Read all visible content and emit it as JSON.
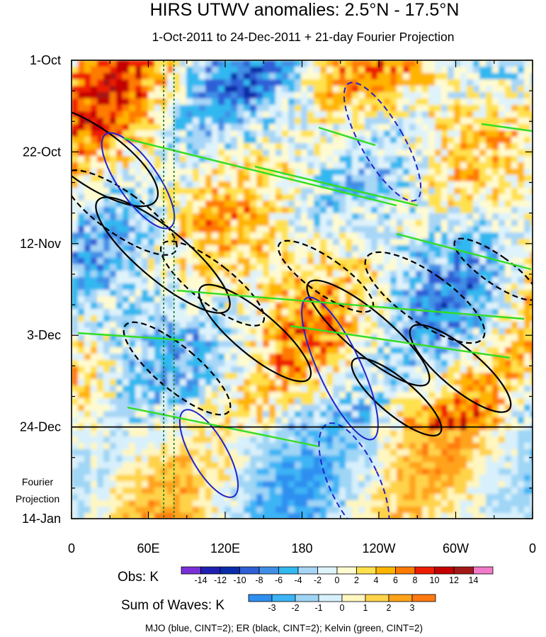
{
  "chart_data": {
    "type": "heatmap",
    "title": "HIRS UTWV anomalies: 2.5°N - 17.5°N",
    "subtitle": "1-Oct-2011 to 24-Dec-2011 + 21-day Fourier Projection",
    "y_axis": {
      "ticks": [
        "1-Oct",
        "22-Oct",
        "12-Nov",
        "3-Dec",
        "24-Dec",
        "14-Jan"
      ],
      "day_values": [
        0,
        21,
        42,
        63,
        84,
        105
      ],
      "range_days": [
        0,
        105
      ]
    },
    "x_axis": {
      "ticks": [
        "0",
        "60E",
        "120E",
        "180",
        "120W",
        "60W",
        "0"
      ],
      "lon_values": [
        0,
        60,
        120,
        180,
        240,
        300,
        360
      ],
      "range_lon": [
        0,
        360
      ]
    },
    "projection_label_line1": "Fourier",
    "projection_label_line2": "Projection",
    "projection_start_day": 84,
    "reference_longitudes": [
      72,
      80
    ],
    "obs_colorbar": {
      "label": "Obs: K",
      "levels": [
        "-14",
        "-12",
        "-10",
        "-8",
        "-6",
        "-4",
        "-2",
        "0",
        "2",
        "4",
        "6",
        "8",
        "10",
        "12",
        "14"
      ],
      "colors": [
        "#7b2fd8",
        "#1f1fb0",
        "#0a2ca8",
        "#2e5fd6",
        "#3f8fe6",
        "#33b8f0",
        "#a7d6f7",
        "#dff3fb",
        "#fffbd0",
        "#ffe14d",
        "#ffb400",
        "#ff7a00",
        "#ee1c00",
        "#c40000",
        "#a31818",
        "#f27ac8"
      ]
    },
    "waves_colorbar": {
      "label": "Sum of Waves: K",
      "levels": [
        "-3",
        "-2",
        "-1",
        "0",
        "1",
        "2",
        "3"
      ],
      "colors": [
        "#2f8ff0",
        "#3db4f5",
        "#9fd5f5",
        "#d8f0fb",
        "#fff6c0",
        "#ffd34a",
        "#ffa31a",
        "#ff7a10"
      ]
    },
    "series": [
      {
        "name": "MJO",
        "color": "#2323cc",
        "cint": 2
      },
      {
        "name": "ER",
        "color": "#000000",
        "cint": 2
      },
      {
        "name": "Kelvin",
        "color": "#33dd22",
        "cint": 2
      }
    ],
    "footnote": "MJO (blue, CINT=2); ER (black, CINT=2); Kelvin (green, CINT=2)"
  }
}
